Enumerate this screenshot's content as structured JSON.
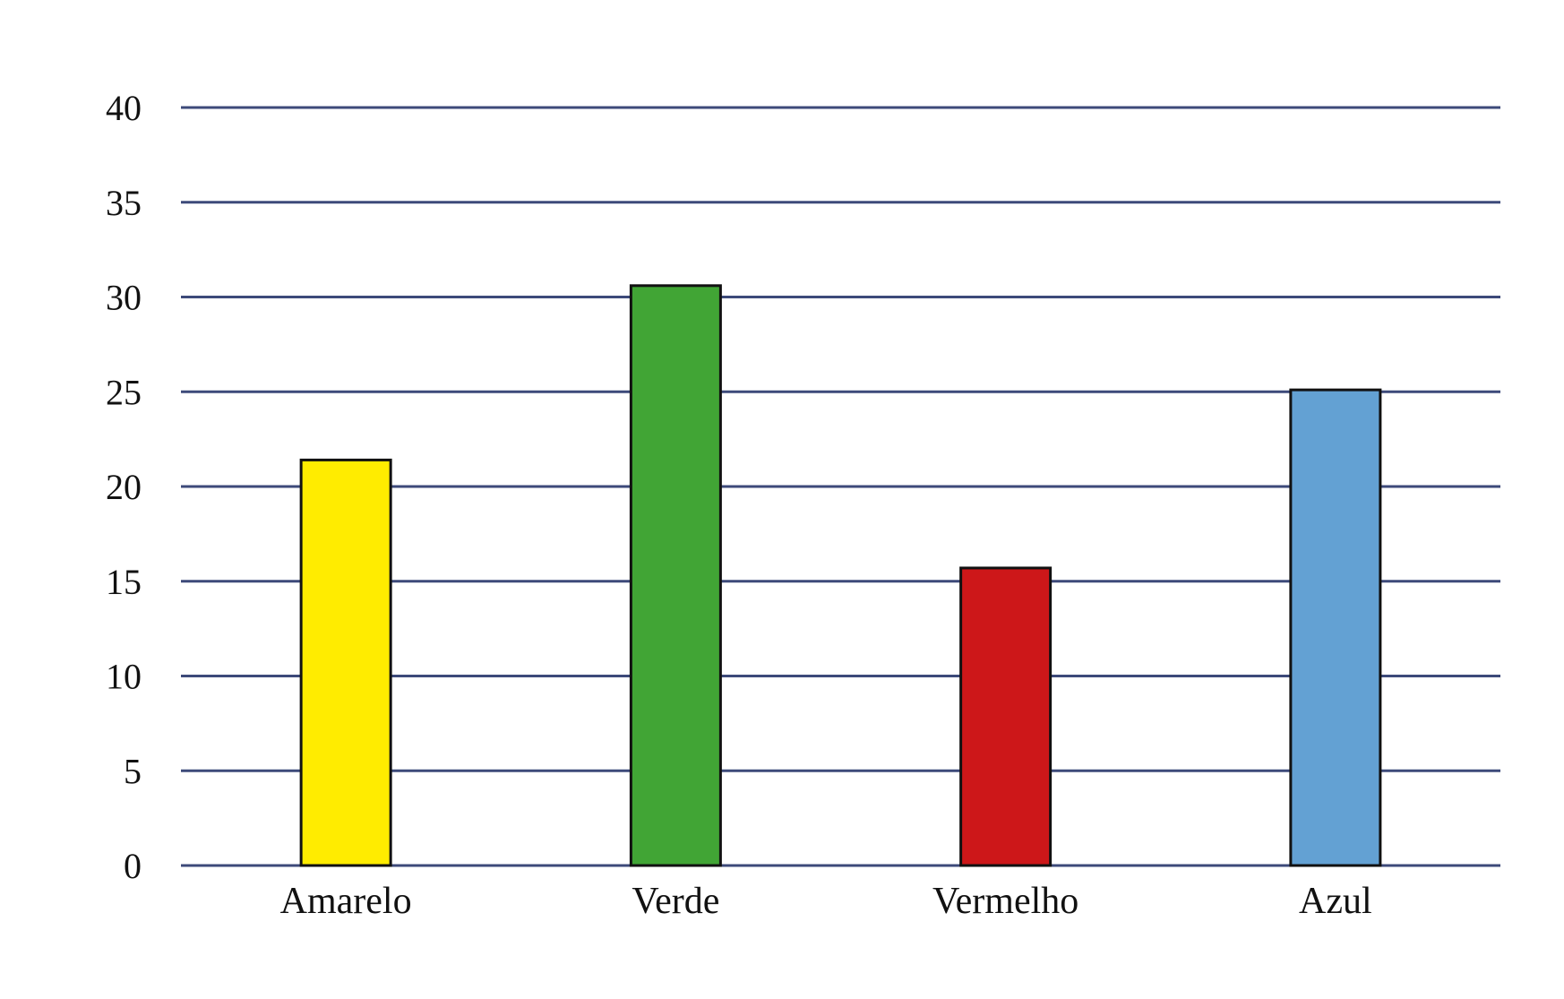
{
  "chart_data": {
    "type": "bar",
    "title": "",
    "xlabel": "",
    "ylabel": "",
    "categories": [
      "Amarelo",
      "Verde",
      "Vermelho",
      "Azul"
    ],
    "values": [
      21.4,
      30.6,
      15.7,
      25.1
    ],
    "bar_colors": [
      "#FFEC00",
      "#41A535",
      "#CD1719",
      "#63A1D3"
    ],
    "ylim": [
      0,
      40
    ],
    "yticks": [
      0,
      5,
      10,
      15,
      20,
      25,
      30,
      35,
      40
    ],
    "ytick_labels": [
      "0",
      "5",
      "10",
      "15",
      "20",
      "25",
      "30",
      "35",
      "40"
    ],
    "grid": true,
    "grid_color": "#3D4A7A",
    "bar_edge_color": "#111111"
  }
}
